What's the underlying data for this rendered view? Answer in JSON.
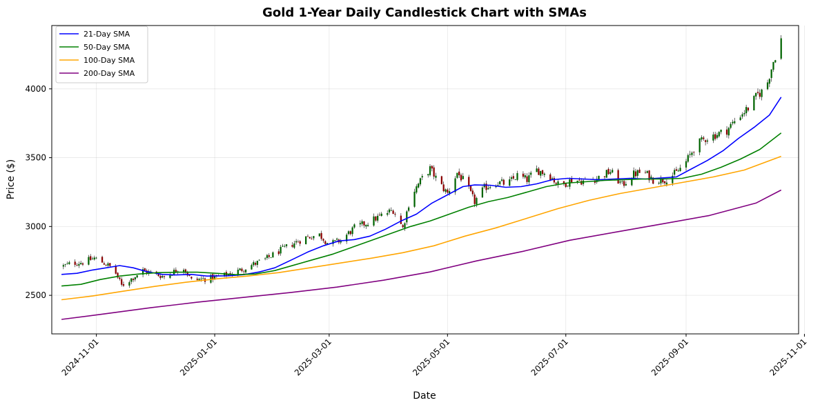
{
  "chart_data": {
    "type": "line",
    "title": "Gold 1-Year Daily Candlestick Chart with SMAs",
    "xlabel": "Date",
    "ylabel": "Price ($)",
    "xlim": [
      "2024-10-09",
      "2025-10-29"
    ],
    "ylim": [
      2220,
      4460
    ],
    "x_ticks": [
      "2024-11-01",
      "2025-01-01",
      "2025-03-01",
      "2025-05-01",
      "2025-07-01",
      "2025-09-01",
      "2025-11-01"
    ],
    "y_ticks": [
      2500,
      3000,
      3500,
      4000
    ],
    "grid": true,
    "legend_position": "top-left",
    "candle_colors": {
      "up": "#006400",
      "down": "#8b0000"
    },
    "price_path": [
      [
        "2024-10-15",
        2712
      ],
      [
        "2024-10-20",
        2735
      ],
      [
        "2024-10-25",
        2740
      ],
      [
        "2024-10-31",
        2770
      ],
      [
        "2024-11-05",
        2735
      ],
      [
        "2024-11-10",
        2690
      ],
      [
        "2024-11-14",
        2570
      ],
      [
        "2024-11-19",
        2620
      ],
      [
        "2024-11-25",
        2680
      ],
      [
        "2024-11-30",
        2660
      ],
      [
        "2024-12-06",
        2635
      ],
      [
        "2024-12-12",
        2680
      ],
      [
        "2024-12-15",
        2720
      ],
      [
        "2024-12-20",
        2610
      ],
      [
        "2024-12-27",
        2620
      ],
      [
        "2025-01-01",
        2630
      ],
      [
        "2025-01-06",
        2645
      ],
      [
        "2025-01-12",
        2670
      ],
      [
        "2025-01-20",
        2720
      ],
      [
        "2025-01-27",
        2760
      ],
      [
        "2025-02-03",
        2820
      ],
      [
        "2025-02-11",
        2880
      ],
      [
        "2025-02-17",
        2920
      ],
      [
        "2025-02-24",
        2940
      ],
      [
        "2025-03-01",
        2870
      ],
      [
        "2025-03-07",
        2900
      ],
      [
        "2025-03-14",
        2990
      ],
      [
        "2025-03-21",
        3030
      ],
      [
        "2025-03-28",
        3080
      ],
      [
        "2025-04-03",
        3120
      ],
      [
        "2025-04-08",
        2990
      ],
      [
        "2025-04-12",
        3220
      ],
      [
        "2025-04-17",
        3330
      ],
      [
        "2025-04-22",
        3420
      ],
      [
        "2025-04-27",
        3310
      ],
      [
        "2025-05-01",
        3240
      ],
      [
        "2025-05-06",
        3390
      ],
      [
        "2025-05-10",
        3320
      ],
      [
        "2025-05-15",
        3180
      ],
      [
        "2025-05-20",
        3280
      ],
      [
        "2025-05-26",
        3320
      ],
      [
        "2025-06-01",
        3310
      ],
      [
        "2025-06-06",
        3370
      ],
      [
        "2025-06-11",
        3340
      ],
      [
        "2025-06-16",
        3410
      ],
      [
        "2025-06-22",
        3380
      ],
      [
        "2025-06-28",
        3290
      ],
      [
        "2025-07-04",
        3340
      ],
      [
        "2025-07-10",
        3330
      ],
      [
        "2025-07-17",
        3350
      ],
      [
        "2025-07-24",
        3400
      ],
      [
        "2025-07-30",
        3300
      ],
      [
        "2025-08-05",
        3380
      ],
      [
        "2025-08-10",
        3400
      ],
      [
        "2025-08-15",
        3340
      ],
      [
        "2025-08-21",
        3340
      ],
      [
        "2025-08-27",
        3390
      ],
      [
        "2025-09-01",
        3470
      ],
      [
        "2025-09-06",
        3590
      ],
      [
        "2025-09-11",
        3640
      ],
      [
        "2025-09-17",
        3670
      ],
      [
        "2025-09-22",
        3700
      ],
      [
        "2025-09-28",
        3800
      ],
      [
        "2025-10-03",
        3860
      ],
      [
        "2025-10-08",
        3960
      ],
      [
        "2025-10-12",
        4000
      ],
      [
        "2025-10-16",
        4200
      ],
      [
        "2025-10-20",
        4360
      ]
    ],
    "series": [
      {
        "name": "21-Day SMA",
        "color": "#0000ff",
        "points": [
          [
            "2024-10-14",
            2652
          ],
          [
            "2024-10-22",
            2660
          ],
          [
            "2024-10-30",
            2684
          ],
          [
            "2024-11-07",
            2702
          ],
          [
            "2024-11-13",
            2716
          ],
          [
            "2024-11-20",
            2700
          ],
          [
            "2024-11-27",
            2672
          ],
          [
            "2024-12-05",
            2652
          ],
          [
            "2024-12-12",
            2648
          ],
          [
            "2024-12-20",
            2652
          ],
          [
            "2024-12-28",
            2640
          ],
          [
            "2025-01-08",
            2642
          ],
          [
            "2025-01-16",
            2650
          ],
          [
            "2025-01-24",
            2670
          ],
          [
            "2025-02-01",
            2700
          ],
          [
            "2025-02-10",
            2760
          ],
          [
            "2025-02-18",
            2815
          ],
          [
            "2025-02-26",
            2860
          ],
          [
            "2025-03-06",
            2895
          ],
          [
            "2025-03-14",
            2905
          ],
          [
            "2025-03-22",
            2930
          ],
          [
            "2025-03-30",
            2980
          ],
          [
            "2025-04-07",
            3040
          ],
          [
            "2025-04-15",
            3090
          ],
          [
            "2025-04-23",
            3170
          ],
          [
            "2025-05-01",
            3230
          ],
          [
            "2025-05-09",
            3290
          ],
          [
            "2025-05-15",
            3302
          ],
          [
            "2025-05-23",
            3300
          ],
          [
            "2025-05-31",
            3285
          ],
          [
            "2025-06-08",
            3290
          ],
          [
            "2025-06-16",
            3310
          ],
          [
            "2025-06-24",
            3340
          ],
          [
            "2025-07-02",
            3350
          ],
          [
            "2025-07-10",
            3345
          ],
          [
            "2025-07-18",
            3340
          ],
          [
            "2025-07-26",
            3345
          ],
          [
            "2025-08-03",
            3350
          ],
          [
            "2025-08-11",
            3345
          ],
          [
            "2025-08-19",
            3352
          ],
          [
            "2025-08-27",
            3360
          ],
          [
            "2025-09-04",
            3420
          ],
          [
            "2025-09-12",
            3480
          ],
          [
            "2025-09-20",
            3550
          ],
          [
            "2025-09-28",
            3640
          ],
          [
            "2025-10-06",
            3720
          ],
          [
            "2025-10-14",
            3810
          ],
          [
            "2025-10-20",
            3940
          ]
        ]
      },
      {
        "name": "50-Day SMA",
        "color": "#008000",
        "points": [
          [
            "2024-10-14",
            2568
          ],
          [
            "2024-10-24",
            2580
          ],
          [
            "2024-11-03",
            2615
          ],
          [
            "2024-11-13",
            2640
          ],
          [
            "2024-11-23",
            2655
          ],
          [
            "2024-12-03",
            2665
          ],
          [
            "2024-12-13",
            2668
          ],
          [
            "2024-12-23",
            2668
          ],
          [
            "2025-01-02",
            2660
          ],
          [
            "2025-01-12",
            2650
          ],
          [
            "2025-01-22",
            2655
          ],
          [
            "2025-02-01",
            2680
          ],
          [
            "2025-02-11",
            2720
          ],
          [
            "2025-02-21",
            2760
          ],
          [
            "2025-03-03",
            2800
          ],
          [
            "2025-03-13",
            2850
          ],
          [
            "2025-03-23",
            2900
          ],
          [
            "2025-04-02",
            2950
          ],
          [
            "2025-04-12",
            3000
          ],
          [
            "2025-04-22",
            3040
          ],
          [
            "2025-05-02",
            3090
          ],
          [
            "2025-05-12",
            3140
          ],
          [
            "2025-05-22",
            3180
          ],
          [
            "2025-06-01",
            3210
          ],
          [
            "2025-06-11",
            3250
          ],
          [
            "2025-06-21",
            3290
          ],
          [
            "2025-07-01",
            3315
          ],
          [
            "2025-07-11",
            3325
          ],
          [
            "2025-07-21",
            3335
          ],
          [
            "2025-07-31",
            3340
          ],
          [
            "2025-08-10",
            3345
          ],
          [
            "2025-08-20",
            3345
          ],
          [
            "2025-08-30",
            3350
          ],
          [
            "2025-09-09",
            3380
          ],
          [
            "2025-09-19",
            3430
          ],
          [
            "2025-09-29",
            3490
          ],
          [
            "2025-10-09",
            3560
          ],
          [
            "2025-10-20",
            3680
          ]
        ]
      },
      {
        "name": "100-Day SMA",
        "color": "#ffa500",
        "points": [
          [
            "2024-10-14",
            2468
          ],
          [
            "2024-10-30",
            2495
          ],
          [
            "2024-11-15",
            2530
          ],
          [
            "2024-12-01",
            2565
          ],
          [
            "2024-12-17",
            2595
          ],
          [
            "2025-01-02",
            2620
          ],
          [
            "2025-01-18",
            2640
          ],
          [
            "2025-02-03",
            2665
          ],
          [
            "2025-02-19",
            2700
          ],
          [
            "2025-03-07",
            2735
          ],
          [
            "2025-03-23",
            2770
          ],
          [
            "2025-04-08",
            2810
          ],
          [
            "2025-04-24",
            2860
          ],
          [
            "2025-05-10",
            2930
          ],
          [
            "2025-05-26",
            2990
          ],
          [
            "2025-06-11",
            3060
          ],
          [
            "2025-06-27",
            3130
          ],
          [
            "2025-07-13",
            3190
          ],
          [
            "2025-07-29",
            3240
          ],
          [
            "2025-08-14",
            3280
          ],
          [
            "2025-08-30",
            3320
          ],
          [
            "2025-09-15",
            3360
          ],
          [
            "2025-10-01",
            3410
          ],
          [
            "2025-10-20",
            3510
          ]
        ]
      },
      {
        "name": "200-Day SMA",
        "color": "#800080",
        "points": [
          [
            "2024-10-14",
            2325
          ],
          [
            "2024-11-05",
            2365
          ],
          [
            "2024-11-29",
            2410
          ],
          [
            "2024-12-23",
            2450
          ],
          [
            "2025-01-16",
            2485
          ],
          [
            "2025-02-09",
            2520
          ],
          [
            "2025-03-05",
            2560
          ],
          [
            "2025-03-29",
            2610
          ],
          [
            "2025-04-22",
            2670
          ],
          [
            "2025-05-16",
            2750
          ],
          [
            "2025-06-09",
            2820
          ],
          [
            "2025-07-03",
            2900
          ],
          [
            "2025-07-27",
            2960
          ],
          [
            "2025-08-20",
            3020
          ],
          [
            "2025-09-13",
            3080
          ],
          [
            "2025-10-07",
            3170
          ],
          [
            "2025-10-20",
            3265
          ]
        ]
      }
    ]
  }
}
